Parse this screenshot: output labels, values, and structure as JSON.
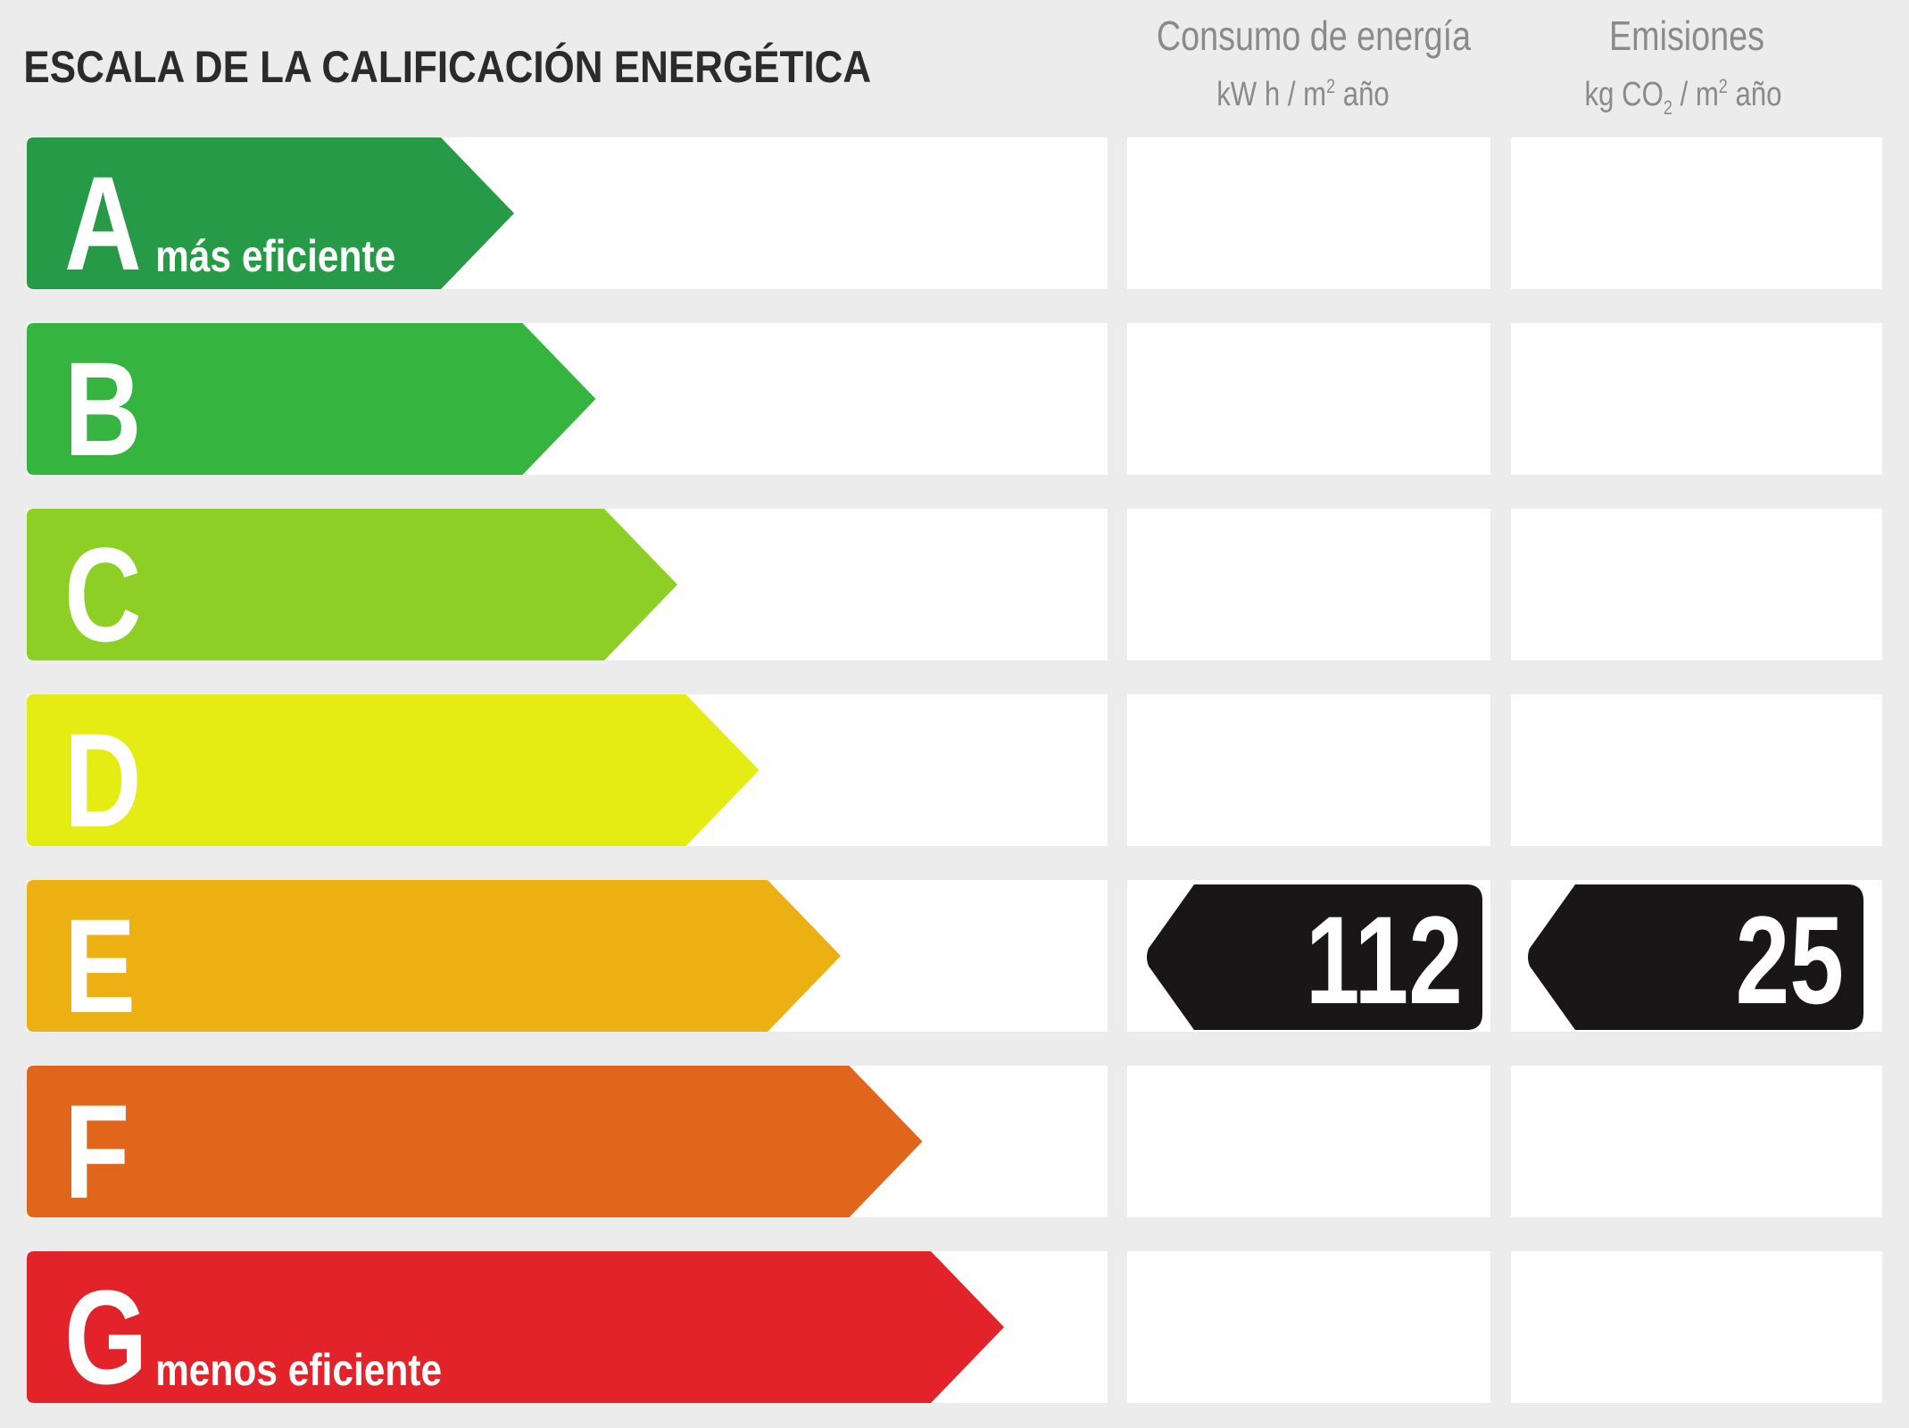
{
  "title": "ESCALA DE LA CALIFICACIÓN ENERGÉTICA",
  "columns": [
    {
      "heading": "Consumo de energía",
      "unit_pre": "kW h / m",
      "unit_sup": "2",
      "unit_post": " año"
    },
    {
      "heading": "Emisiones",
      "unit_pre": "kg CO",
      "unit_sub": "2",
      "unit_mid": " / m",
      "unit_sup": "2",
      "unit_post": " año"
    }
  ],
  "ratings": [
    {
      "letter": "A",
      "caption": "más eficiente",
      "color": "#279a47"
    },
    {
      "letter": "B",
      "caption": "",
      "color": "#35b53f"
    },
    {
      "letter": "C",
      "caption": "",
      "color": "#8dcf24"
    },
    {
      "letter": "D",
      "caption": "",
      "color": "#e5ec13"
    },
    {
      "letter": "E",
      "caption": "",
      "color": "#edb013"
    },
    {
      "letter": "F",
      "caption": "",
      "color": "#e0661c"
    },
    {
      "letter": "G",
      "caption": "menos eficiente",
      "color": "#e3232a"
    }
  ],
  "result": {
    "rating": "E",
    "energy_consumption": "112",
    "emissions": "25",
    "badge_color": "#1a1617"
  }
}
